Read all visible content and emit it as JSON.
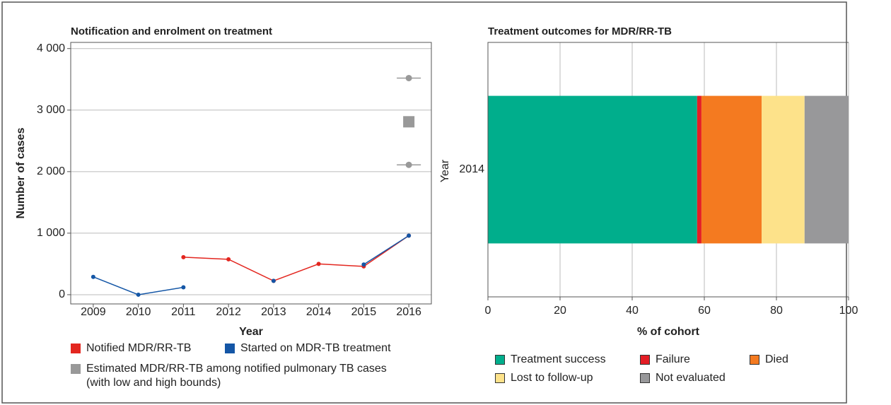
{
  "chart_data": [
    {
      "type": "line",
      "title": "Notification and enrolment on treatment",
      "xlabel": "Year",
      "ylabel": "Number of cases",
      "x": [
        2009,
        2010,
        2011,
        2012,
        2013,
        2014,
        2015,
        2016
      ],
      "xlim": [
        2008.5,
        2016.5
      ],
      "xticks": [
        2009,
        2010,
        2011,
        2012,
        2013,
        2014,
        2015,
        2016
      ],
      "ylim": [
        -150,
        4100
      ],
      "yticks": [
        0,
        {
          "value": 1000,
          "label": "1 000"
        },
        {
          "value": 2000,
          "label": "2 000"
        },
        {
          "value": 3000,
          "label": "3 000"
        },
        {
          "value": 4000,
          "label": "4 000"
        }
      ],
      "grid": true,
      "series": [
        {
          "name": "Notified MDR/RR-TB",
          "color": "#e3261f",
          "values": [
            null,
            null,
            610,
            575,
            225,
            500,
            460,
            960
          ]
        },
        {
          "name": "Started on MDR-TB treatment",
          "color": "#1456a6",
          "values": [
            290,
            0,
            120,
            null,
            225,
            null,
            490,
            960
          ]
        }
      ],
      "estimate": {
        "name": "Estimated MDR/RR-TB among notified pulmonary TB cases (with low and high bounds)",
        "color": "#999999",
        "x": 2016,
        "value": 2810,
        "low": 2110,
        "high": 3520
      }
    },
    {
      "type": "bar",
      "orientation": "horizontal",
      "stacked": true,
      "title": "Treatment outcomes for MDR/RR-TB",
      "xlabel": "% of cohort",
      "ylabel": "Year",
      "categories": [
        "2014"
      ],
      "xlim": [
        0,
        100
      ],
      "xticks": [
        0,
        20,
        40,
        60,
        80,
        100
      ],
      "grid": true,
      "series": [
        {
          "name": "Treatment success",
          "color": "#00ae8c",
          "values": [
            58
          ]
        },
        {
          "name": "Failure",
          "color": "#e41d25",
          "values": [
            1.2
          ]
        },
        {
          "name": "Died",
          "color": "#f47a20",
          "values": [
            16.7
          ]
        },
        {
          "name": "Lost to follow-up",
          "color": "#fde28a",
          "values": [
            11.9
          ]
        },
        {
          "name": "Not evaluated",
          "color": "#98989a",
          "values": [
            12.2
          ]
        }
      ]
    }
  ]
}
